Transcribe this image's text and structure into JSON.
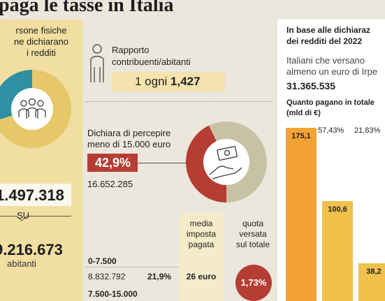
{
  "title": "paga le tasse in Italia",
  "left": {
    "lines": [
      "rsone fisiche",
      "ne dichiarano",
      "i redditi"
    ],
    "count": "1.497.318",
    "su": "SU",
    "population": "9.216.673",
    "abitanti": "abitanti"
  },
  "ratio": {
    "label_line1": "Rapporto",
    "label_line2": "contribuenti/abitanti",
    "prefix": "1 ogni ",
    "value": "1,427"
  },
  "low_income": {
    "line1": "Dichiara di percepire",
    "line2": "meno di 15.000 euro",
    "percent": "42,9%",
    "count": "16.652.285"
  },
  "table": {
    "col1": [
      "media",
      "imposta",
      "pagata"
    ],
    "col2": [
      "quota",
      "versata",
      "sul totale"
    ],
    "rows": [
      {
        "range": "0-7.500",
        "count": "8.832.792",
        "share": "21,9%",
        "tax": "26 euro",
        "quota": "1,73%"
      },
      {
        "range": "7.500-15.000"
      }
    ]
  },
  "right": {
    "heading_line1": "In base alle dichiaraz",
    "heading_line2": "dei redditi del 2022",
    "sub_line1": "Italiani che versano",
    "sub_line2": "almeno un euro di Irpe",
    "sub_value": "31.365.535",
    "chart_title_line1": "Quanto pagano in totale",
    "chart_title_line2": "(mld di €)"
  },
  "chart_data": [
    {
      "type": "pie",
      "values": [
        70,
        30
      ],
      "colors": [
        "#e6c86a",
        "#2f8fa3"
      ]
    },
    {
      "type": "pie",
      "values": [
        42.9,
        57.1
      ],
      "colors": [
        "#b53d33",
        "#c9c1a4"
      ]
    },
    {
      "type": "bar",
      "categories": [
        "",
        "",
        ""
      ],
      "values": [
        175.1,
        100.6,
        38.2
      ],
      "value_labels": [
        "175,1",
        "100,6",
        "38,2"
      ],
      "percent_labels": [
        "",
        "57,43%",
        "21,83%"
      ],
      "ylim": [
        0,
        180
      ],
      "colors": [
        "#f3a234",
        "#f0c14b",
        "#f0c14b"
      ]
    }
  ],
  "colors": {
    "red": "#b53d33",
    "yellow": "#f1dea1",
    "teal": "#2f8fa3",
    "orange": "#f3a234"
  }
}
